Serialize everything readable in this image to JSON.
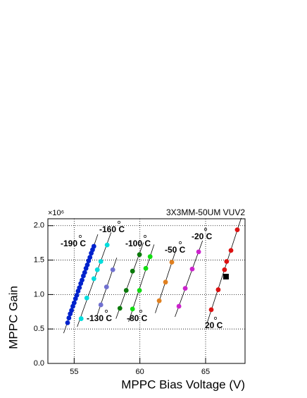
{
  "chart_data": {
    "type": "scatter",
    "title": "3X3MM-50UM VUV2",
    "y_scale_label": "×10⁶",
    "x_label": "MPPC Bias Voltage (V)",
    "y_label": "MPPC Gain",
    "xlim": [
      53,
      68
    ],
    "ylim": [
      0,
      2.1
    ],
    "xticks": [
      55,
      60,
      65
    ],
    "yticks": [
      {
        "value": 0,
        "label": "0.0"
      },
      {
        "value": 0.5,
        "label": "0.5"
      },
      {
        "value": 1,
        "label": "1.0"
      },
      {
        "value": 1.5,
        "label": "1.5"
      },
      {
        "value": 2,
        "label": "2.0"
      }
    ],
    "grid": true,
    "series": [
      {
        "name": "-190 C",
        "color": "#0022cc",
        "x": [
          54.5,
          54.6,
          54.7,
          54.8,
          54.9,
          55.0,
          55.1,
          55.2,
          55.3,
          55.4,
          55.5,
          55.6,
          55.7,
          55.8,
          55.9,
          56.0,
          56.1,
          56.2,
          56.3,
          56.4,
          56.5
        ],
        "values": [
          0.59,
          0.66,
          0.72,
          0.77,
          0.83,
          0.88,
          0.94,
          0.99,
          1.05,
          1.1,
          1.16,
          1.21,
          1.27,
          1.32,
          1.38,
          1.43,
          1.49,
          1.54,
          1.6,
          1.65,
          1.7
        ]
      },
      {
        "name": "-160 C",
        "color": "#00dddd",
        "x": [
          55.53,
          55.96,
          56.5,
          56.76,
          57.03,
          57.51
        ],
        "values": [
          0.65,
          0.95,
          1.23,
          1.36,
          1.48,
          1.72
        ]
      },
      {
        "name": "-130 C",
        "color": "#7070d0",
        "x": [
          57.03,
          57.46,
          57.94
        ],
        "values": [
          0.85,
          1.11,
          1.36
        ]
      },
      {
        "name": "-100 C",
        "color": "#0a7a0a",
        "x": [
          58.48,
          58.96,
          59.44,
          59.97
        ],
        "values": [
          0.8,
          1.06,
          1.34,
          1.58
        ]
      },
      {
        "name": "-80 C",
        "color": "#11dd11",
        "x": [
          59.44,
          59.97,
          60.45,
          60.78
        ],
        "values": [
          0.79,
          1.06,
          1.38,
          1.55
        ]
      },
      {
        "name": "-50 C",
        "color": "#e08020",
        "x": [
          61.47,
          61.95,
          62.43
        ],
        "values": [
          0.91,
          1.18,
          1.47
        ]
      },
      {
        "name": "-20 C",
        "color": "#cc22cc",
        "x": [
          62.97,
          63.45,
          63.98,
          64.47
        ],
        "values": [
          0.83,
          1.09,
          1.37,
          1.62
        ]
      },
      {
        "name": "20 C",
        "color": "#dd1111",
        "x": [
          65.43,
          65.96,
          66.44,
          66.6,
          66.93,
          67.41
        ],
        "values": [
          0.78,
          1.07,
          1.36,
          1.48,
          1.64,
          1.94
        ]
      },
      {
        "color": "#000000",
        "marker": "square",
        "x": [
          66.55
        ],
        "values": [
          1.26
        ]
      }
    ]
  }
}
